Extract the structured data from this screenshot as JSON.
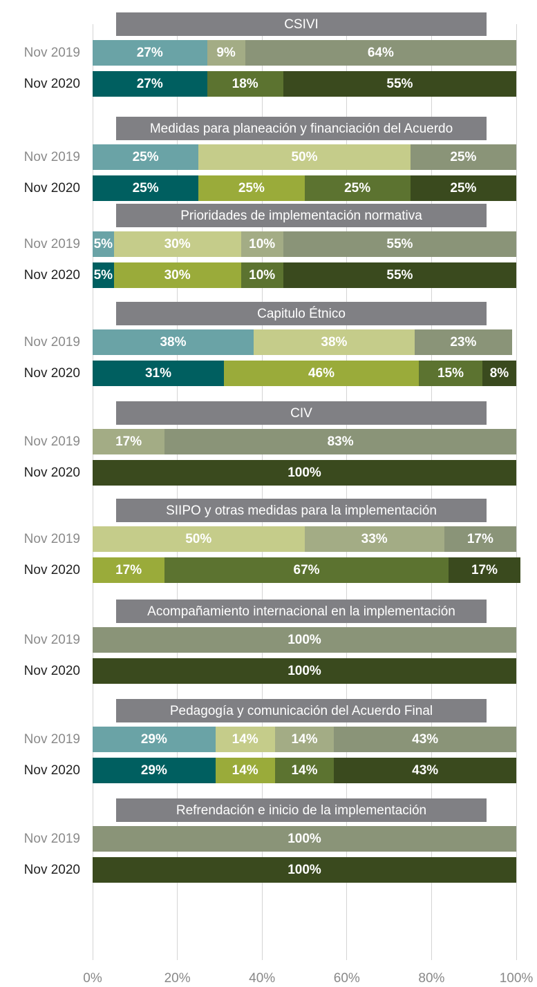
{
  "chart_data": {
    "type": "bar",
    "orientation": "horizontal",
    "stacked": true,
    "xlim": [
      0,
      100
    ],
    "xticks": [
      {
        "value": 0,
        "label": "0%"
      },
      {
        "value": 20,
        "label": "20%"
      },
      {
        "value": 40,
        "label": "40%"
      },
      {
        "value": 60,
        "label": "60%"
      },
      {
        "value": 80,
        "label": "80%"
      },
      {
        "value": 100,
        "label": "100%"
      }
    ],
    "grid": true,
    "colors": [
      [
        "#6aa3a6",
        "#c5cc8a",
        "#a3ac85",
        "#8a9478"
      ],
      [
        "#005f60",
        "#9aab3a",
        "#5c7330",
        "#3a4a1e"
      ]
    ],
    "groups": [
      {
        "title": "CSIVI",
        "bars": [
          {
            "label": "Nov 2019",
            "values": [
              27,
              null,
              9,
              64
            ],
            "value_labels": [
              "27%",
              null,
              "9%",
              "64%"
            ]
          },
          {
            "label": "Nov 2020",
            "values": [
              27,
              null,
              18,
              55
            ],
            "value_labels": [
              "27%",
              null,
              "18%",
              "55%"
            ]
          }
        ]
      },
      {
        "title": "Medidas para planeación y financiación del Acuerdo",
        "bars": [
          {
            "label": "Nov 2019",
            "values": [
              25,
              50,
              null,
              25
            ],
            "value_labels": [
              "25%",
              "50%",
              null,
              "25%"
            ]
          },
          {
            "label": "Nov 2020",
            "values": [
              25,
              25,
              25,
              25
            ],
            "value_labels": [
              "25%",
              "25%",
              "25%",
              "25%"
            ]
          }
        ]
      },
      {
        "title": "Prioridades de implementación normativa",
        "bars": [
          {
            "label": "Nov 2019",
            "values": [
              5,
              30,
              10,
              55
            ],
            "value_labels": [
              "5%",
              "30%",
              "10%",
              "55%"
            ]
          },
          {
            "label": "Nov 2020",
            "values": [
              5,
              30,
              10,
              55
            ],
            "value_labels": [
              "5%",
              "30%",
              "10%",
              "55%"
            ]
          }
        ]
      },
      {
        "title": "Capitulo Étnico",
        "bars": [
          {
            "label": "Nov 2019",
            "values": [
              38,
              38,
              null,
              23
            ],
            "value_labels": [
              "38%",
              "38%",
              null,
              "23%"
            ]
          },
          {
            "label": "Nov 2020",
            "values": [
              31,
              46,
              15,
              8
            ],
            "value_labels": [
              "31%",
              "46%",
              "15%",
              "8%"
            ]
          }
        ]
      },
      {
        "title": "CIV",
        "bars": [
          {
            "label": "Nov 2019",
            "values": [
              null,
              null,
              17,
              83
            ],
            "value_labels": [
              null,
              null,
              "17%",
              "83%"
            ]
          },
          {
            "label": "Nov 2020",
            "values": [
              null,
              null,
              null,
              100
            ],
            "value_labels": [
              null,
              null,
              null,
              "100%"
            ]
          }
        ]
      },
      {
        "title": "SIIPO y otras medidas para la implementación",
        "bars": [
          {
            "label": "Nov 2019",
            "values": [
              null,
              50,
              33,
              17
            ],
            "value_labels": [
              null,
              "50%",
              "33%",
              "17%"
            ]
          },
          {
            "label": "Nov 2020",
            "values": [
              null,
              17,
              67,
              17
            ],
            "value_labels": [
              null,
              "17%",
              "67%",
              "17%"
            ]
          }
        ]
      },
      {
        "title": "Acompañamiento internacional en la implementación",
        "bars": [
          {
            "label": "Nov 2019",
            "values": [
              null,
              null,
              null,
              100
            ],
            "value_labels": [
              null,
              null,
              null,
              "100%"
            ]
          },
          {
            "label": "Nov 2020",
            "values": [
              null,
              null,
              null,
              100
            ],
            "value_labels": [
              null,
              null,
              null,
              "100%"
            ]
          }
        ]
      },
      {
        "title": "Pedagogía y comunicación del Acuerdo Final",
        "bars": [
          {
            "label": "Nov 2019",
            "values": [
              29,
              14,
              14,
              43
            ],
            "value_labels": [
              "29%",
              "14%",
              "14%",
              "43%"
            ]
          },
          {
            "label": "Nov 2020",
            "values": [
              29,
              14,
              14,
              43
            ],
            "value_labels": [
              "29%",
              "14%",
              "14%",
              "43%"
            ]
          }
        ]
      },
      {
        "title": "Refrendación e inicio de la implementación",
        "bars": [
          {
            "label": "Nov 2019",
            "values": [
              null,
              null,
              null,
              100
            ],
            "value_labels": [
              null,
              null,
              null,
              "100%"
            ]
          },
          {
            "label": "Nov 2020",
            "values": [
              null,
              null,
              null,
              100
            ],
            "value_labels": [
              null,
              null,
              null,
              "100%"
            ]
          }
        ]
      }
    ]
  }
}
